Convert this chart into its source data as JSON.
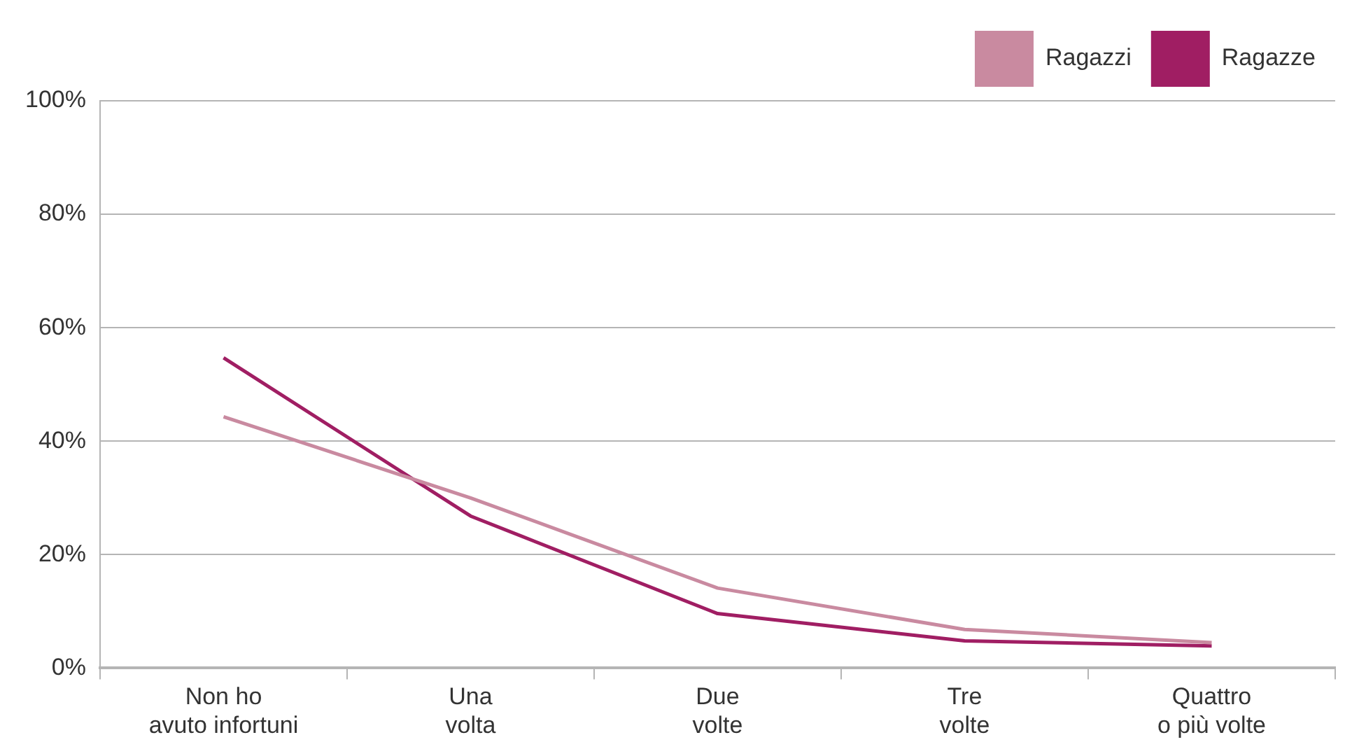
{
  "chart_data": {
    "type": "line",
    "categories": [
      "Non ho\navuto infortuni",
      "Una\nvolta",
      "Due\nvolte",
      "Tre\nvolte",
      "Quattro\no più volte"
    ],
    "series": [
      {
        "name": "Ragazzi",
        "color": "#c98aa0",
        "values": [
          44.3,
          30.0,
          14.1,
          6.8,
          4.5
        ]
      },
      {
        "name": "Ragazze",
        "color": "#a01e63",
        "values": [
          54.7,
          26.8,
          9.6,
          4.8,
          3.9
        ]
      }
    ],
    "ylim": [
      0,
      100
    ],
    "yticks": [
      {
        "value": 0,
        "label": "0%"
      },
      {
        "value": 20,
        "label": "20%"
      },
      {
        "value": 40,
        "label": "40%"
      },
      {
        "value": 60,
        "label": "60%"
      },
      {
        "value": 80,
        "label": "80%"
      },
      {
        "value": 100,
        "label": "100%"
      }
    ],
    "grid": "y",
    "legend": "top right",
    "marker": "none",
    "line_style": "solid"
  }
}
